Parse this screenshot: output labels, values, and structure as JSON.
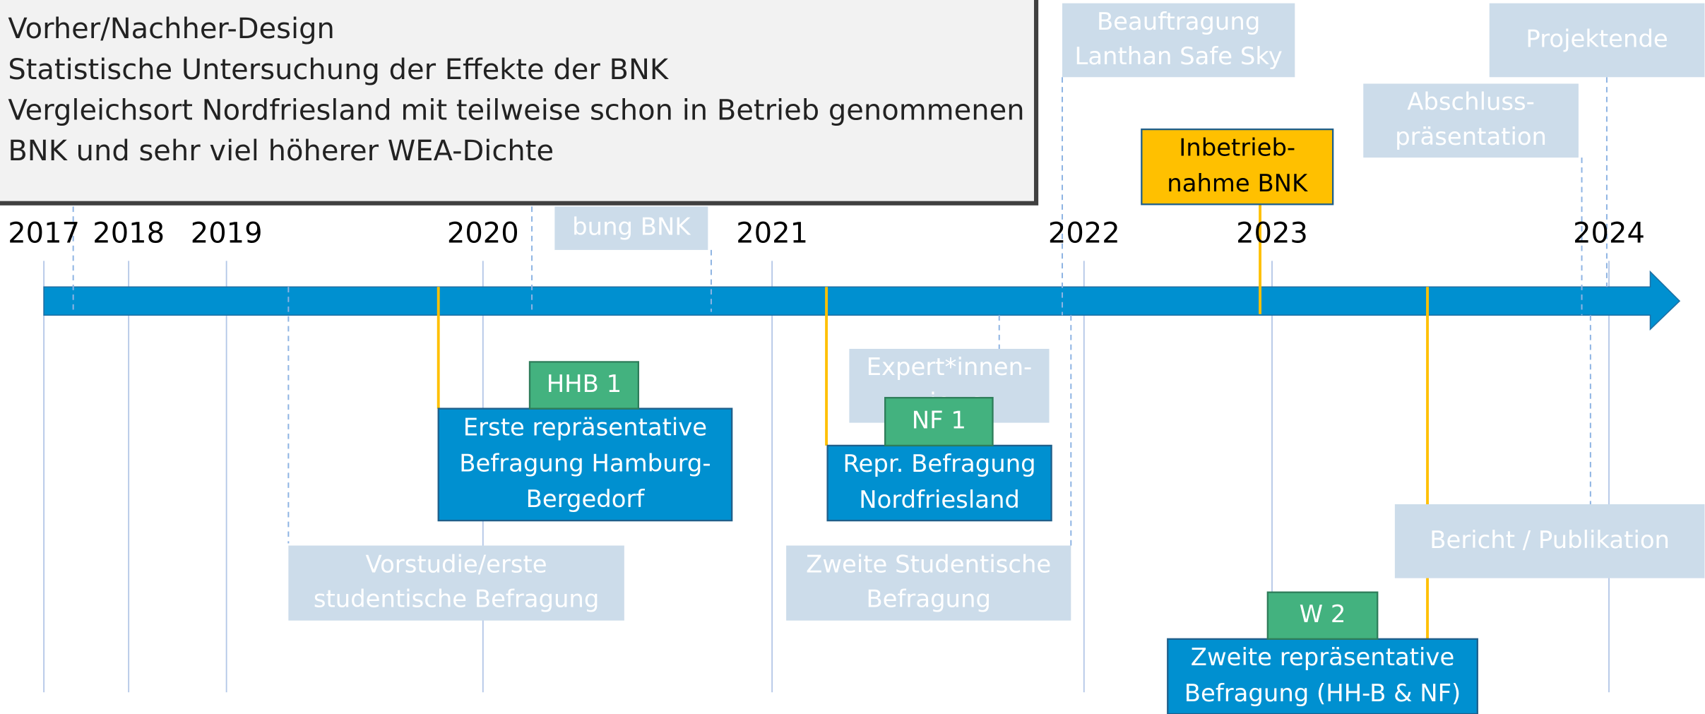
{
  "textbox": {
    "lines": [
      "Vorher/Nachher-Design",
      "Statistische Untersuchung der Effekte der BNK",
      "Vergleichsort Nordfriesland mit teilweise schon in Betrieb genommenen",
      "BNK und sehr viel höherer WEA-Dichte"
    ]
  },
  "years": [
    "2017",
    "2018",
    "2019",
    "2020",
    "2021",
    "2022",
    "2023",
    "2024"
  ],
  "faded": [
    {
      "lines": [
        "Beauftragung",
        "Lanthan Safe Sky"
      ]
    },
    {
      "lines": [
        "Projektende"
      ]
    },
    {
      "lines": [
        "Abschluss-",
        "präsentation"
      ]
    },
    {
      "lines": [
        "bung BNK"
      ]
    },
    {
      "lines": [
        "Expert*innen-",
        "views"
      ]
    },
    {
      "lines": [
        "Vorstudie/erste",
        "studentische Befragung"
      ]
    },
    {
      "lines": [
        "Zweite Studentische",
        "Befragung"
      ]
    },
    {
      "lines": [
        "Bericht / Publikation"
      ]
    }
  ],
  "surveys": [
    {
      "lines": [
        "Erste repräsentative",
        "Befragung Hamburg-",
        "Bergedorf"
      ]
    },
    {
      "lines": [
        "Repr. Befragung",
        "Nordfriesland"
      ]
    },
    {
      "lines": [
        "Zweite repräsentative",
        "Befragung (HH-B & NF)"
      ]
    }
  ],
  "waves": [
    "HHB 1",
    "NF 1",
    "W 2"
  ],
  "milestone": {
    "lines": [
      "Inbetrieb-",
      "nahme BNK"
    ]
  }
}
